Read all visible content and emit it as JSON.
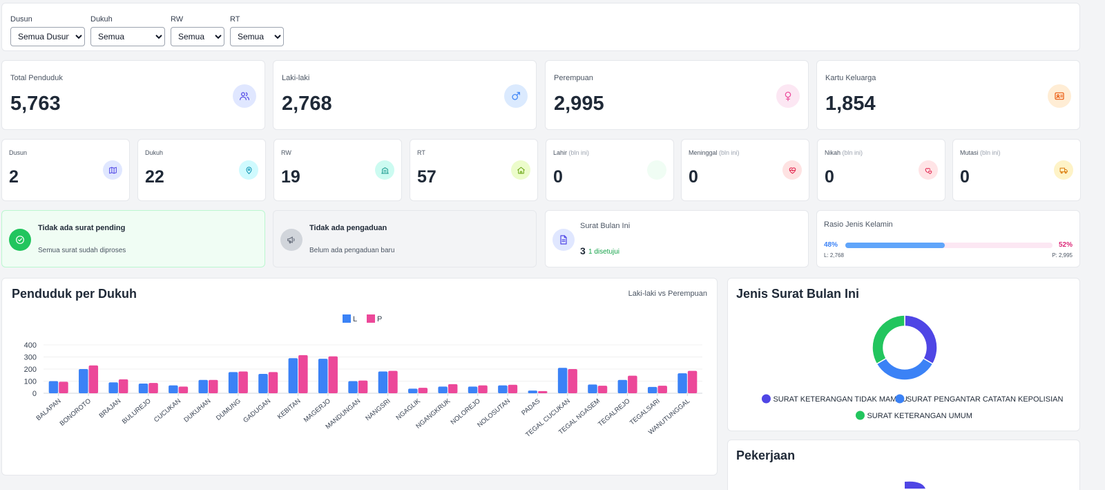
{
  "filters": {
    "dusun": {
      "label": "Dusun",
      "value": "Semua Dusun"
    },
    "dukuh": {
      "label": "Dukuh",
      "value": "Semua"
    },
    "rw": {
      "label": "RW",
      "value": "Semua"
    },
    "rt": {
      "label": "RT",
      "value": "Semua"
    }
  },
  "stats": {
    "total": {
      "title": "Total Penduduk",
      "value": "5,763",
      "icon": "users-icon"
    },
    "male": {
      "title": "Laki-laki",
      "value": "2,768",
      "icon": "male-icon"
    },
    "female": {
      "title": "Perempuan",
      "value": "2,995",
      "icon": "female-icon"
    },
    "kk": {
      "title": "Kartu Keluarga",
      "value": "1,854",
      "icon": "id-card-icon"
    }
  },
  "mini": {
    "dusun": {
      "title": "Dusun",
      "value": "2",
      "icon": "map-icon"
    },
    "dukuh": {
      "title": "Dukuh",
      "value": "22",
      "icon": "pin-icon"
    },
    "rw": {
      "title": "RW",
      "value": "19",
      "icon": "building-icon"
    },
    "rt": {
      "title": "RT",
      "value": "57",
      "icon": "home-icon"
    },
    "lahir": {
      "title": "Lahir",
      "sub": "(bln ini)",
      "value": "0",
      "icon": "baby-icon"
    },
    "meninggal": {
      "title": "Meninggal",
      "sub": "(bln ini)",
      "value": "0",
      "icon": "heart-pulse-icon"
    },
    "nikah": {
      "title": "Nikah",
      "sub": "(bln ini)",
      "value": "0",
      "icon": "hearts-icon"
    },
    "mutasi": {
      "title": "Mutasi",
      "sub": "(bln ini)",
      "value": "0",
      "icon": "truck-icon"
    }
  },
  "alerts": {
    "surat": {
      "title": "Tidak ada surat pending",
      "body": "Semua surat sudah diproses"
    },
    "pengaduan": {
      "title": "Tidak ada pengaduan",
      "body": "Belum ada pengaduan baru"
    },
    "bulan": {
      "title": "Surat Bulan Ini",
      "value": "3",
      "approved": "1 disetujui"
    }
  },
  "ratio": {
    "title": "Rasio Jenis Kelamin",
    "male_pct_label": "48%",
    "female_pct_label": "52%",
    "male_fraction": 0.48,
    "male_label": "L: 2,768",
    "female_label": "P: 2,995"
  },
  "colors": {
    "male": "#3b82f6",
    "female": "#ec4899",
    "accent": "#4f46e5",
    "success": "#22c55e"
  },
  "chart_data": [
    {
      "type": "bar",
      "title": "Penduduk per Dukuh",
      "subtitle": "Laki-laki vs Perempuan",
      "legend_position": "top",
      "ylim": [
        0,
        400
      ],
      "yticks": [
        0,
        100,
        200,
        300,
        400
      ],
      "categories": [
        "BALAPAN",
        "BONOROTO",
        "BRAJAN",
        "BULUREJO",
        "CUCUKAN",
        "DUKUHAN",
        "DUMUNG",
        "GADUGAN",
        "KEBITAN",
        "MAGERJO",
        "MANDUNGAN",
        "NANGSRI",
        "NGAGLIK",
        "NGANGKRUK",
        "NOLOREJO",
        "NOLOSUTAN",
        "PADAS",
        "TEGAL CUCUKAN",
        "TEGAL NGASEM",
        "TEGALREJO",
        "TEGALSARI",
        "WANUTUNGGAL"
      ],
      "series": [
        {
          "name": "L",
          "color": "#3b82f6",
          "values": [
            100,
            200,
            90,
            80,
            65,
            110,
            175,
            160,
            290,
            285,
            100,
            180,
            38,
            55,
            55,
            65,
            22,
            210,
            72,
            110,
            52,
            165
          ]
        },
        {
          "name": "P",
          "color": "#ec4899",
          "values": [
            95,
            230,
            115,
            85,
            55,
            110,
            180,
            175,
            315,
            305,
            105,
            185,
            45,
            75,
            65,
            70,
            18,
            200,
            62,
            145,
            62,
            185
          ]
        }
      ]
    },
    {
      "type": "pie",
      "title": "Jenis Surat Bulan Ini",
      "donut": true,
      "legend_position": "bottom",
      "labels": [
        "SURAT KETERANGAN TIDAK MAMPU",
        "SURAT PENGANTAR CATATAN KEPOLISIAN",
        "SURAT KETERANGAN UMUM"
      ],
      "values": [
        1,
        1,
        1
      ],
      "colors": [
        "#4f46e5",
        "#3b82f6",
        "#22c55e"
      ]
    }
  ],
  "pekerjaan": {
    "title": "Pekerjaan"
  }
}
